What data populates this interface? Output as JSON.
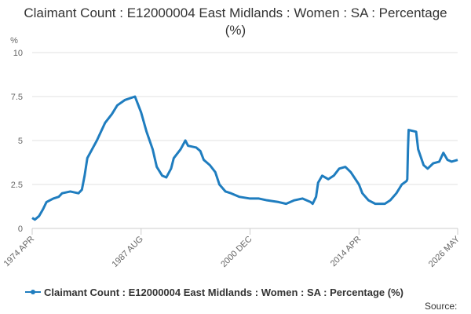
{
  "chart_data": {
    "type": "line",
    "title": "Claimant Count : E12000004 East Midlands : Women : SA : Percentage (%)",
    "y_label": "%",
    "source": "Source:",
    "x": [
      "1974 APR",
      "1974 AUG",
      "1975 FEB",
      "1975 AUG",
      "1976 JAN",
      "1976 NOV",
      "1977 JUL",
      "1977 DEC",
      "1978 DEC",
      "1979 DEC",
      "1980 MAY",
      "1980 SEP",
      "1981 JAN",
      "1981 AUG",
      "1982 MAR",
      "1983 MAR",
      "1984 JAN",
      "1984 SEP",
      "1985 AUG",
      "1986 NOV",
      "1987 AUG",
      "1988 APR",
      "1989 JAN",
      "1989 JUL",
      "1990 MAR",
      "1990 SEP",
      "1991 APR",
      "1991 AUG",
      "1992 JUN",
      "1993 JAN",
      "1993 MAY",
      "1994 MAY",
      "1994 NOV",
      "1995 APR",
      "1996 JAN",
      "1996 SEP",
      "1997 MAR",
      "1997 DEC",
      "1998 AUG",
      "1999 AUG",
      "2000 DEC",
      "2002 JAN",
      "2003 JAN",
      "2004 JUN",
      "2005 MAY",
      "2006 MAY",
      "2007 MAY",
      "2008 MAY",
      "2008 AUG",
      "2009 JAN",
      "2009 APR",
      "2009 OCT",
      "2010 JUL",
      "2011 MAR",
      "2011 NOV",
      "2012 AUG",
      "2013 APR",
      "2014 APR",
      "2014 SEP",
      "2015 JUN",
      "2016 APR",
      "2017 JUN",
      "2018 FEB",
      "2018 NOV",
      "2019 JUL",
      "2020 FEB",
      "2020 MAR",
      "2020 APR",
      "2020 MAY",
      "2021 APR",
      "2021 JUL",
      "2022 MAR",
      "2022 SEP",
      "2023 MAY",
      "2024 FEB",
      "2024 AUG",
      "2025 FEB",
      "2025 AUG",
      "2026 MAY"
    ],
    "series": [
      {
        "name": "Claimant Count : E12000004 East Midlands : Women : SA : Percentage (%)",
        "color": "#1f7dbf",
        "values": [
          0.6,
          0.5,
          0.7,
          1.1,
          1.5,
          1.7,
          1.8,
          2.0,
          2.1,
          2.0,
          2.2,
          3.0,
          4.0,
          4.5,
          5.0,
          6.0,
          6.5,
          7.0,
          7.3,
          7.5,
          6.6,
          5.5,
          4.5,
          3.5,
          3.0,
          2.9,
          3.4,
          4.0,
          4.5,
          5.0,
          4.7,
          4.6,
          4.4,
          3.9,
          3.6,
          3.2,
          2.5,
          2.1,
          2.0,
          1.8,
          1.7,
          1.7,
          1.6,
          1.5,
          1.4,
          1.6,
          1.7,
          1.5,
          1.4,
          1.8,
          2.6,
          3.0,
          2.8,
          3.0,
          3.4,
          3.5,
          3.2,
          2.5,
          2.0,
          1.6,
          1.4,
          1.4,
          1.6,
          2.0,
          2.5,
          2.7,
          2.8,
          4.5,
          5.6,
          5.5,
          4.5,
          3.6,
          3.4,
          3.7,
          3.8,
          4.3,
          3.9,
          3.8,
          3.9
        ]
      }
    ],
    "xticks": [
      "1974 APR",
      "1987 AUG",
      "2000 DEC",
      "2014 APR",
      "2026 MAY"
    ],
    "ylim": [
      0,
      10
    ],
    "yticks": [
      0,
      2.5,
      5,
      7.5,
      10
    ],
    "grid": true
  }
}
